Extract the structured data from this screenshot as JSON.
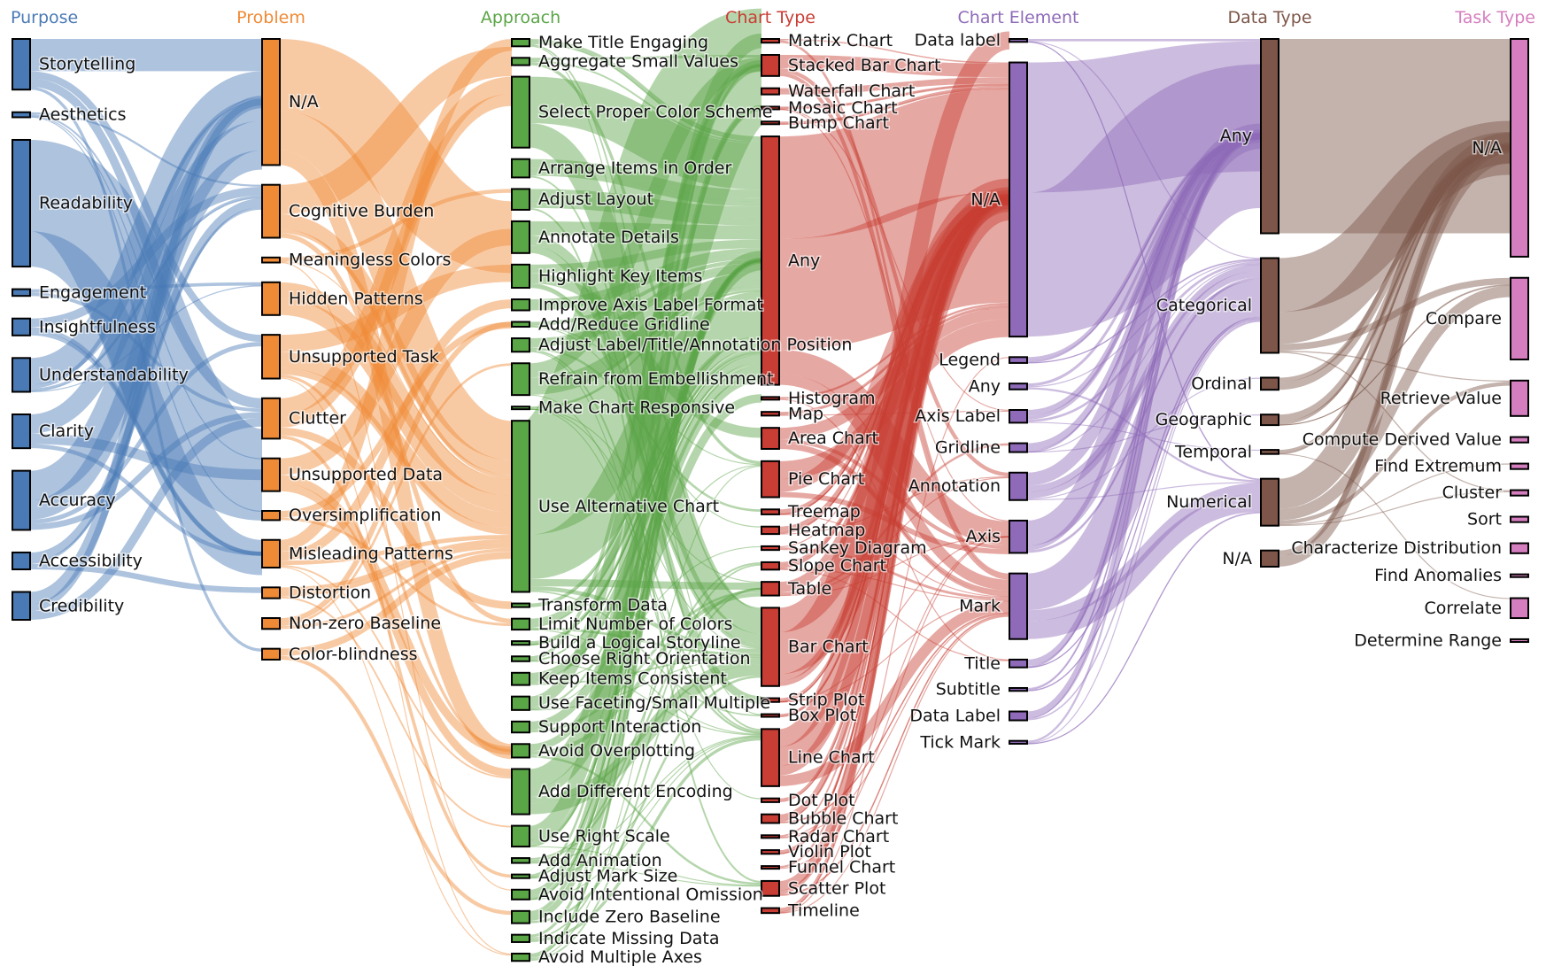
{
  "columns": [
    {
      "id": "purpose",
      "title": "Purpose",
      "color": "#4a7ab5",
      "nodes": [
        {
          "label": "Storytelling",
          "value": 6
        },
        {
          "label": "Aesthetics",
          "value": 0.6
        },
        {
          "label": "Readability",
          "value": 15
        },
        {
          "label": "Engagement",
          "value": 0.8
        },
        {
          "label": "Insightfulness",
          "value": 2
        },
        {
          "label": "Understandability",
          "value": 4
        },
        {
          "label": "Clarity",
          "value": 4
        },
        {
          "label": "Accuracy",
          "value": 7
        },
        {
          "label": "Accessibility",
          "value": 2
        },
        {
          "label": "Credibility",
          "value": 3.3
        }
      ]
    },
    {
      "id": "problem",
      "title": "Problem",
      "color": "#ef8a36",
      "nodes": [
        {
          "label": "N/A",
          "value": 15
        },
        {
          "label": "Cognitive Burden",
          "value": 6.3
        },
        {
          "label": "Meaningless Colors",
          "value": 0.6
        },
        {
          "label": "Hidden Patterns",
          "value": 3.9
        },
        {
          "label": "Unsupported Task",
          "value": 5.2
        },
        {
          "label": "Clutter",
          "value": 4.8
        },
        {
          "label": "Unsupported Data",
          "value": 3.9
        },
        {
          "label": "Oversimplification",
          "value": 1.1
        },
        {
          "label": "Misleading Patterns",
          "value": 3.3
        },
        {
          "label": "Distortion",
          "value": 1.3
        },
        {
          "label": "Non-zero Baseline",
          "value": 1.3
        },
        {
          "label": "Color-blindness",
          "value": 1.3
        }
      ]
    },
    {
      "id": "approach",
      "title": "Approach",
      "color": "#5aa546",
      "nodes": [
        {
          "label": "Make Title Engaging",
          "value": 0.6
        },
        {
          "label": "Aggregate Small Values",
          "value": 0.6
        },
        {
          "label": "Select Proper Color Scheme",
          "value": 5.8
        },
        {
          "label": "Arrange Items in Order",
          "value": 1.5
        },
        {
          "label": "Adjust Layout",
          "value": 1.7
        },
        {
          "label": "Annotate Details",
          "value": 2.6
        },
        {
          "label": "Highlight Key Items",
          "value": 1.9
        },
        {
          "label": "Improve Axis Label Format",
          "value": 0.9
        },
        {
          "label": "Add/Reduce Gridline",
          "value": 0.4
        },
        {
          "label": "Adjust Label/Title/Annotation Position",
          "value": 1.1
        },
        {
          "label": "Refrain from Embellishment",
          "value": 2.6
        },
        {
          "label": "Make Chart Responsive",
          "value": 0.2
        },
        {
          "label": "Use Alternative Chart",
          "value": 14
        },
        {
          "label": "Transform Data",
          "value": 0.3
        },
        {
          "label": "Limit Number of Colors",
          "value": 0.9
        },
        {
          "label": "Build a Logical Storyline",
          "value": 0.3
        },
        {
          "label": "Choose Right Orientation",
          "value": 0.4
        },
        {
          "label": "Keep Items Consistent",
          "value": 1.0
        },
        {
          "label": "Use Faceting/Small Multiple",
          "value": 1.1
        },
        {
          "label": "Support Interaction",
          "value": 0.9
        },
        {
          "label": "Avoid Overplotting",
          "value": 1.1
        },
        {
          "label": "Add Different Encoding",
          "value": 3.7
        },
        {
          "label": "Use Right Scale",
          "value": 1.7
        },
        {
          "label": "Add Animation",
          "value": 0.4
        },
        {
          "label": "Adjust Mark Size",
          "value": 0.3
        },
        {
          "label": "Avoid Intentional Omission",
          "value": 0.8
        },
        {
          "label": "Include Zero Baseline",
          "value": 1.0
        },
        {
          "label": "Indicate Missing Data",
          "value": 0.6
        },
        {
          "label": "Avoid Multiple Axes",
          "value": 0.6
        }
      ]
    },
    {
      "id": "charttype",
      "title": "Chart Type",
      "color": "#c83d34",
      "nodes": [
        {
          "label": "Matrix Chart",
          "value": 0.3
        },
        {
          "label": "Stacked Bar Chart",
          "value": 1.7
        },
        {
          "label": "Waterfall Chart",
          "value": 0.5
        },
        {
          "label": "Mosaic Chart",
          "value": 0.2
        },
        {
          "label": "Bump Chart",
          "value": 0.2
        },
        {
          "label": "Any",
          "value": 20
        },
        {
          "label": "Histogram",
          "value": 0.2
        },
        {
          "label": "Map",
          "value": 0.3
        },
        {
          "label": "Area Chart",
          "value": 1.7
        },
        {
          "label": "Pie Chart",
          "value": 2.9
        },
        {
          "label": "Treemap",
          "value": 0.4
        },
        {
          "label": "Heatmap",
          "value": 0.6
        },
        {
          "label": "Sankey Diagram",
          "value": 0.3
        },
        {
          "label": "Slope Chart",
          "value": 0.6
        },
        {
          "label": "Table",
          "value": 1.1
        },
        {
          "label": "Bar Chart",
          "value": 6.3
        },
        {
          "label": "Strip Plot",
          "value": 0.3
        },
        {
          "label": "Box Plot",
          "value": 0.2
        },
        {
          "label": "Line Chart",
          "value": 4.6
        },
        {
          "label": "Dot Plot",
          "value": 0.3
        },
        {
          "label": "Bubble Chart",
          "value": 0.7
        },
        {
          "label": "Radar Chart",
          "value": 0.2
        },
        {
          "label": "Violin Plot",
          "value": 0.3
        },
        {
          "label": "Funnel Chart",
          "value": 0.2
        },
        {
          "label": "Scatter Plot",
          "value": 1.2
        },
        {
          "label": "Timeline",
          "value": 0.4
        }
      ]
    },
    {
      "id": "chartelement",
      "title": "Chart Element",
      "color": "#8e6ab8",
      "nodes": [
        {
          "label": "Data label",
          "value": 0.3
        },
        {
          "label": "N/A",
          "value": 28
        },
        {
          "label": "Legend",
          "value": 0.6
        },
        {
          "label": "Any",
          "value": 0.6
        },
        {
          "label": "Axis Label",
          "value": 1.3
        },
        {
          "label": "Gridline",
          "value": 0.9
        },
        {
          "label": "Annotation",
          "value": 2.8
        },
        {
          "label": "Axis",
          "value": 3.3
        },
        {
          "label": "Mark",
          "value": 6.7
        },
        {
          "label": "Title",
          "value": 0.8
        },
        {
          "label": "Subtitle",
          "value": 0.3
        },
        {
          "label": "Data Label",
          "value": 0.9
        },
        {
          "label": "Tick Mark",
          "value": 0.3
        }
      ]
    },
    {
      "id": "datatype",
      "title": "Data Type",
      "color": "#7d5649",
      "nodes": [
        {
          "label": "Any",
          "value": 24
        },
        {
          "label": "Categorical",
          "value": 11.7
        },
        {
          "label": "Ordinal",
          "value": 1.5
        },
        {
          "label": "Geographic",
          "value": 1.3
        },
        {
          "label": "Temporal",
          "value": 0.5
        },
        {
          "label": "Numerical",
          "value": 5.8
        },
        {
          "label": "N/A",
          "value": 2.0
        }
      ]
    },
    {
      "id": "tasktype",
      "title": "Task Type",
      "color": "#d57ebf",
      "nodes": [
        {
          "label": "N/A",
          "value": 24
        },
        {
          "label": "Compare",
          "value": 9
        },
        {
          "label": "Retrieve Value",
          "value": 3.9
        },
        {
          "label": "Compute Derived Value",
          "value": 0.6
        },
        {
          "label": "Find Extremum",
          "value": 0.6
        },
        {
          "label": "Cluster",
          "value": 0.6
        },
        {
          "label": "Sort",
          "value": 0.6
        },
        {
          "label": "Characterize Distribution",
          "value": 1.1
        },
        {
          "label": "Find Anomalies",
          "value": 0.3
        },
        {
          "label": "Correlate",
          "value": 2.2
        },
        {
          "label": "Determine Range",
          "value": 0.3
        }
      ]
    }
  ]
}
